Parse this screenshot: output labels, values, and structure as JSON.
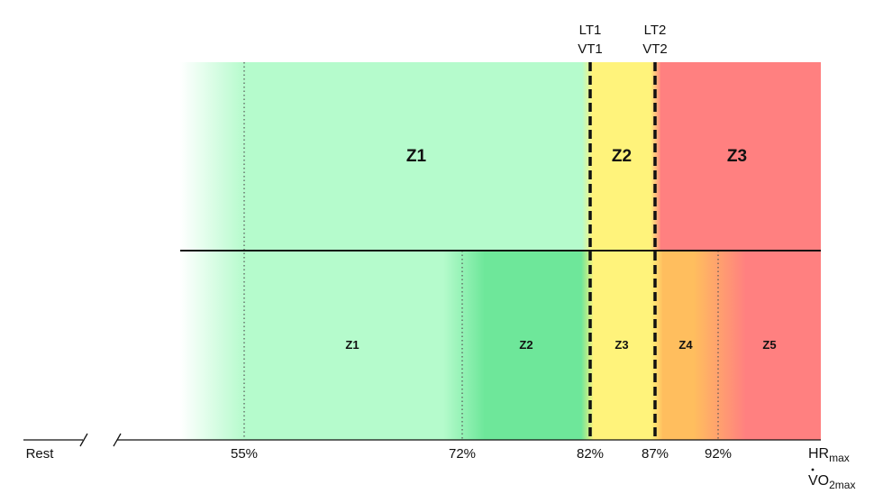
{
  "colors": {
    "light_green": "#b5fbcc",
    "green": "#6ee79a",
    "yellow": "#fff37b",
    "orange": "#ffbe5e",
    "red": "#ff8080",
    "line": "#111111"
  },
  "three_zone_model": {
    "zones": [
      {
        "label": "Z1"
      },
      {
        "label": "Z2"
      },
      {
        "label": "Z3"
      }
    ]
  },
  "five_zone_model": {
    "zones": [
      {
        "label": "Z1"
      },
      {
        "label": "Z2"
      },
      {
        "label": "Z3"
      },
      {
        "label": "Z4"
      },
      {
        "label": "Z5"
      }
    ]
  },
  "thresholds": [
    {
      "line1": "LT1",
      "line2": "VT1"
    },
    {
      "line1": "LT2",
      "line2": "VT2"
    }
  ],
  "axis": {
    "rest_label": "Rest",
    "ticks": [
      "55%",
      "72%",
      "82%",
      "87%",
      "92%"
    ],
    "end_label_1": {
      "base": "HR",
      "sub": "max"
    },
    "end_label_2": {
      "base": "VO",
      "sub": "2max"
    }
  }
}
